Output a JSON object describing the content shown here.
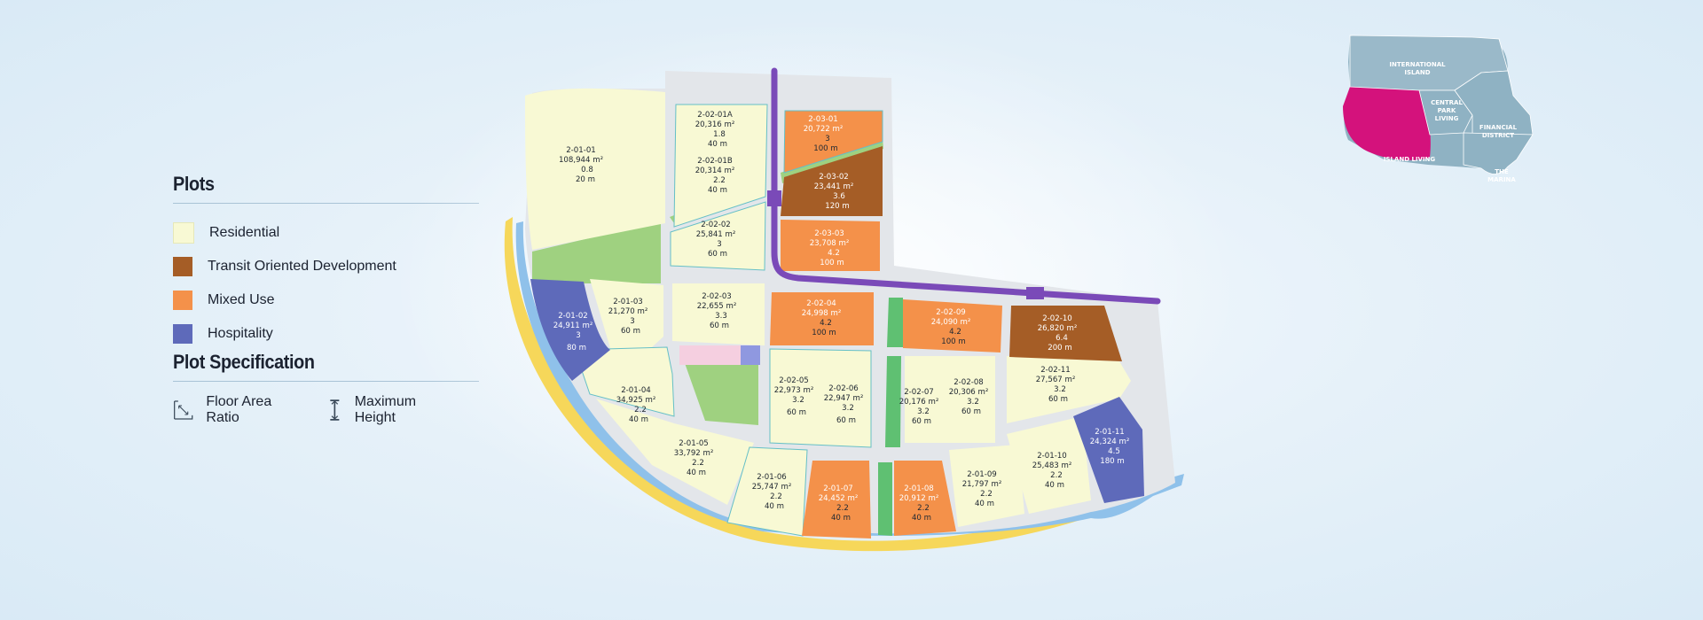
{
  "legend": {
    "plots_title": "Plots",
    "plot_types": [
      {
        "label": "Residential",
        "color": "#f8f9d4"
      },
      {
        "label": "Transit Oriented Development",
        "color": "#a55d26"
      },
      {
        "label": "Mixed Use",
        "color": "#f4914a"
      },
      {
        "label": "Hospitality",
        "color": "#5e6aba"
      }
    ],
    "spec_title": "Plot Specification",
    "far_label": "Floor Area Ratio",
    "height_label": "Maximum Height"
  },
  "inset": {
    "international_island": [
      "INTERNATIONAL",
      "ISLAND"
    ],
    "central_park": [
      "CENTRAL",
      "PARK",
      "LIVING"
    ],
    "financial_district": [
      "FINANCIAL",
      "DISTRICT"
    ],
    "island_living": "ISLAND LIVING",
    "the_marina": [
      "THE",
      "MARINA"
    ],
    "colors": {
      "region": "#8fb2c3",
      "active": "#d4127c"
    }
  },
  "plots": [
    {
      "id": "2-01-01",
      "area": "108,944 m²",
      "far": "0.8",
      "height": "20 m",
      "type": "residential"
    },
    {
      "id": "2-02-01A",
      "area": "20,316 m²",
      "far": "1.8",
      "height": "40 m",
      "type": "residential"
    },
    {
      "id": "2-02-01B",
      "area": "20,314 m²",
      "far": "2.2",
      "height": "40 m",
      "type": "residential"
    },
    {
      "id": "2-02-02",
      "area": "25,841 m²",
      "far": "3",
      "height": "60 m",
      "type": "residential"
    },
    {
      "id": "2-03-01",
      "area": "20,722 m²",
      "far": "3",
      "height": "100 m",
      "type": "mixed"
    },
    {
      "id": "2-03-02",
      "area": "23,441 m²",
      "far": "3.6",
      "height": "120 m",
      "type": "tod"
    },
    {
      "id": "2-03-03",
      "area": "23,708 m²",
      "far": "4.2",
      "height": "100 m",
      "type": "mixed"
    },
    {
      "id": "2-01-02",
      "area": "24,911 m²",
      "far": "3",
      "height": "80 m",
      "type": "hospitality"
    },
    {
      "id": "2-01-03",
      "area": "21,270 m²",
      "far": "3",
      "height": "60 m",
      "type": "residential"
    },
    {
      "id": "2-02-03",
      "area": "22,655 m²",
      "far": "3.3",
      "height": "60 m",
      "type": "residential"
    },
    {
      "id": "2-02-04",
      "area": "24,998 m²",
      "far": "4.2",
      "height": "100 m",
      "type": "mixed"
    },
    {
      "id": "2-02-09",
      "area": "24,090 m²",
      "far": "4.2",
      "height": "100 m",
      "type": "mixed"
    },
    {
      "id": "2-02-10",
      "area": "26,820 m²",
      "far": "6.4",
      "height": "200 m",
      "type": "tod"
    },
    {
      "id": "2-02-11",
      "area": "27,567 m²",
      "far": "3.2",
      "height": "60 m",
      "type": "residential"
    },
    {
      "id": "2-01-04",
      "area": "34,925 m²",
      "far": "2.2",
      "height": "40 m",
      "type": "residential"
    },
    {
      "id": "2-01-05",
      "area": "33,792 m²",
      "far": "2.2",
      "height": "40 m",
      "type": "residential"
    },
    {
      "id": "2-02-05",
      "area": "22,973 m²",
      "far": "3.2",
      "height": "60 m",
      "type": "residential"
    },
    {
      "id": "2-02-06",
      "area": "22,947 m²",
      "far": "3.2",
      "height": "60 m",
      "type": "residential"
    },
    {
      "id": "2-02-07",
      "area": "20,176 m²",
      "far": "3.2",
      "height": "60 m",
      "type": "residential"
    },
    {
      "id": "2-02-08",
      "area": "20,306 m²",
      "far": "3.2",
      "height": "60 m",
      "type": "residential"
    },
    {
      "id": "2-01-11",
      "area": "24,324 m²",
      "far": "4.5",
      "height": "180 m",
      "type": "hospitality"
    },
    {
      "id": "2-01-10",
      "area": "25,483 m²",
      "far": "2.2",
      "height": "40 m",
      "type": "residential"
    },
    {
      "id": "2-01-06",
      "area": "25,747 m²",
      "far": "2.2",
      "height": "40 m",
      "type": "residential"
    },
    {
      "id": "2-01-07",
      "area": "24,452 m²",
      "far": "2.2",
      "height": "40 m",
      "type": "mixed"
    },
    {
      "id": "2-01-08",
      "area": "20,912 m²",
      "far": "2.2",
      "height": "40 m",
      "type": "mixed"
    },
    {
      "id": "2-01-09",
      "area": "21,797 m²",
      "far": "2.2",
      "height": "40 m",
      "type": "residential"
    }
  ]
}
